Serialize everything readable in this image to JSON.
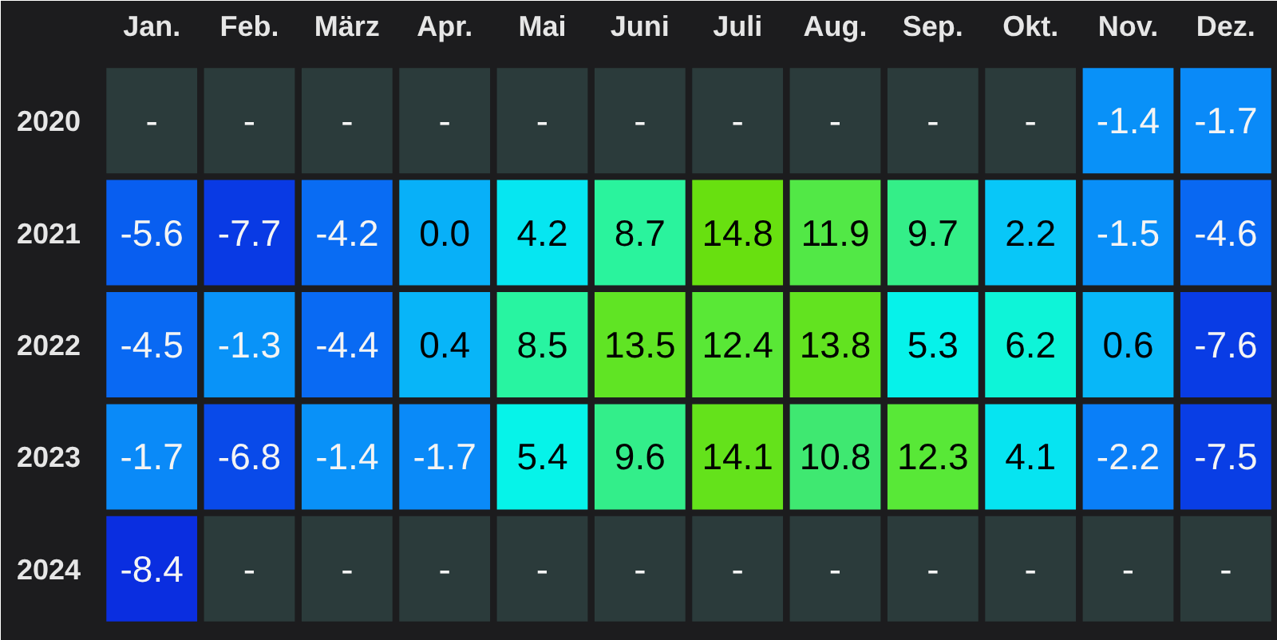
{
  "chart_data": {
    "type": "heatmap",
    "categories": [
      "Jan.",
      "Feb.",
      "März",
      "Apr.",
      "Mai",
      "Juni",
      "Juli",
      "Aug.",
      "Sep.",
      "Okt.",
      "Nov.",
      "Dez."
    ],
    "y_categories": [
      "2020",
      "2021",
      "2022",
      "2023",
      "2024"
    ],
    "cells": [
      [
        null,
        null,
        null,
        null,
        null,
        null,
        null,
        null,
        null,
        null,
        -1.4,
        -1.7
      ],
      [
        -5.6,
        -7.7,
        -4.2,
        0.0,
        4.2,
        8.7,
        14.8,
        11.9,
        9.7,
        2.2,
        -1.5,
        -4.6
      ],
      [
        -4.5,
        -1.3,
        -4.4,
        0.4,
        8.5,
        13.5,
        12.4,
        13.8,
        5.3,
        6.2,
        0.6,
        -7.6
      ],
      [
        -1.7,
        -6.8,
        -1.4,
        -1.7,
        5.4,
        9.6,
        14.1,
        10.8,
        12.3,
        4.1,
        -2.2,
        -7.5
      ],
      [
        -8.4,
        null,
        null,
        null,
        null,
        null,
        null,
        null,
        null,
        null,
        null,
        null
      ]
    ],
    "cell_labels": [
      [
        "-",
        "-",
        "-",
        "-",
        "-",
        "-",
        "-",
        "-",
        "-",
        "-",
        "-1.4",
        "-1.7"
      ],
      [
        "-5.6",
        "-7.7",
        "-4.2",
        "0.0",
        "4.2",
        "8.7",
        "14.8",
        "11.9",
        "9.7",
        "2.2",
        "-1.5",
        "-4.6"
      ],
      [
        "-4.5",
        "-1.3",
        "-4.4",
        "0.4",
        "8.5",
        "13.5",
        "12.4",
        "13.8",
        "5.3",
        "6.2",
        "0.6",
        "-7.6"
      ],
      [
        "-1.7",
        "-6.8",
        "-1.4",
        "-1.7",
        "5.4",
        "9.6",
        "14.1",
        "10.8",
        "12.3",
        "4.1",
        "-2.2",
        "-7.5"
      ],
      [
        "-8.4",
        "-",
        "-",
        "-",
        "-",
        "-",
        "-",
        "-",
        "-",
        "-",
        "-",
        "-"
      ]
    ]
  }
}
